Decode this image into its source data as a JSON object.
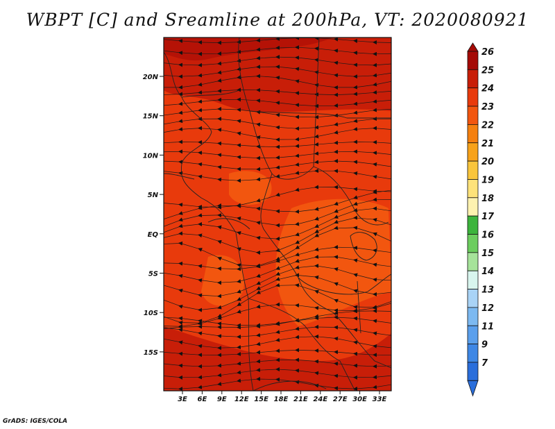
{
  "title": "WBPT [C] and Sreamline at 200hPa, VT: 2020080921",
  "footer": "GrADS: IGES/COLA",
  "map": {
    "lat_labels": [
      "20N",
      "15N",
      "10N",
      "5N",
      "EQ",
      "5S",
      "10S",
      "15S"
    ],
    "lon_labels": [
      "3E",
      "6E",
      "9E",
      "12E",
      "15E",
      "18E",
      "21E",
      "24E",
      "27E",
      "30E",
      "33E"
    ],
    "fill_colors": {
      "dominant": "#e83a0c",
      "high": "#c81e08",
      "low": "#f2560f"
    }
  },
  "colorbar": {
    "labels": [
      "26",
      "25",
      "24",
      "23",
      "22",
      "21",
      "20",
      "19",
      "18",
      "17",
      "16",
      "15",
      "14",
      "13",
      "12",
      "11",
      "9",
      "7"
    ],
    "colors": [
      "#a50a06",
      "#c81e08",
      "#e83a0c",
      "#f2560f",
      "#f5800f",
      "#f7a21a",
      "#f9c53c",
      "#fde27a",
      "#fdf2b0",
      "#3cb43c",
      "#6ccd5e",
      "#a6e39a",
      "#d8f5ee",
      "#a9d3f6",
      "#7cb9f1",
      "#5a9fec",
      "#3e87e5",
      "#2a6edb"
    ]
  }
}
